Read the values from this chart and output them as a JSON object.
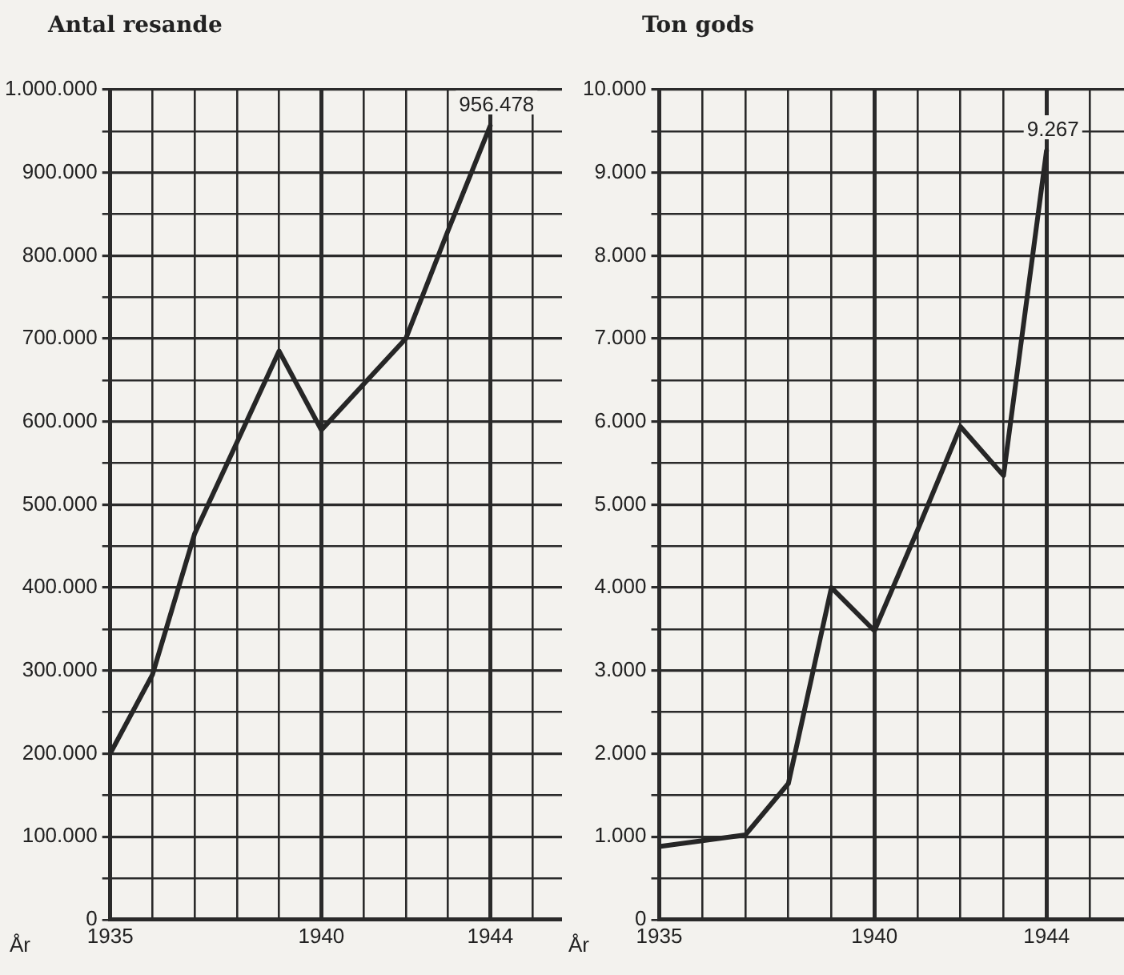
{
  "chart_data": [
    {
      "type": "line",
      "title": "Antal resande",
      "xlabel": "År",
      "marker": "none",
      "grid": true,
      "legend": false,
      "x": [
        1935,
        1936,
        1937,
        1938,
        1939,
        1940,
        1941,
        1942,
        1943,
        1944
      ],
      "series": [
        {
          "color": "#262626",
          "values": [
            200000,
            295000,
            465000,
            575000,
            685000,
            590000,
            645000,
            700000,
            830000,
            956478
          ],
          "value_labels": [
            null,
            null,
            null,
            null,
            null,
            null,
            null,
            null,
            null,
            "956.478"
          ]
        }
      ],
      "xlim": [
        1935,
        1945.7
      ],
      "xticks": [
        1935,
        {
          "value": 1936,
          "label": null
        },
        {
          "value": 1937,
          "label": null
        },
        {
          "value": 1938,
          "label": null
        },
        {
          "value": 1939,
          "label": null
        },
        1940,
        {
          "value": 1941,
          "label": null
        },
        {
          "value": 1942,
          "label": null
        },
        {
          "value": 1943,
          "label": null
        },
        1944,
        {
          "value": 1945,
          "label": null
        }
      ],
      "ylim": [
        0,
        1000000
      ],
      "yticks": [
        0,
        {
          "value": 50000,
          "label": null
        },
        {
          "value": 100000,
          "label": "100.000"
        },
        {
          "value": 150000,
          "label": null
        },
        {
          "value": 200000,
          "label": "200.000"
        },
        {
          "value": 250000,
          "label": null
        },
        {
          "value": 300000,
          "label": "300.000"
        },
        {
          "value": 350000,
          "label": null
        },
        {
          "value": 400000,
          "label": "400.000"
        },
        {
          "value": 450000,
          "label": null
        },
        {
          "value": 500000,
          "label": "500.000"
        },
        {
          "value": 550000,
          "label": null
        },
        {
          "value": 600000,
          "label": "600.000"
        },
        {
          "value": 650000,
          "label": null
        },
        {
          "value": 700000,
          "label": "700.000"
        },
        {
          "value": 750000,
          "label": null
        },
        {
          "value": 800000,
          "label": "800.000"
        },
        {
          "value": 850000,
          "label": null
        },
        {
          "value": 900000,
          "label": "900.000"
        },
        {
          "value": 950000,
          "label": null
        },
        {
          "value": 1000000,
          "label": "1.000.000"
        }
      ]
    },
    {
      "type": "line",
      "title": "Ton gods",
      "xlabel": "År",
      "marker": "none",
      "grid": true,
      "legend": false,
      "x": [
        1935,
        1936,
        1937,
        1938,
        1939,
        1940,
        1941,
        1942,
        1943,
        1944
      ],
      "series": [
        {
          "color": "#262626",
          "values": [
            880,
            950,
            1020,
            1640,
            4000,
            3480,
            4690,
            5940,
            5350,
            9267
          ],
          "value_labels": [
            null,
            null,
            null,
            null,
            null,
            null,
            null,
            null,
            null,
            "9.267"
          ]
        }
      ],
      "xlim": [
        1935,
        1945.8
      ],
      "xticks": [
        1935,
        {
          "value": 1936,
          "label": null
        },
        {
          "value": 1937,
          "label": null
        },
        {
          "value": 1938,
          "label": null
        },
        {
          "value": 1939,
          "label": null
        },
        1940,
        {
          "value": 1941,
          "label": null
        },
        {
          "value": 1942,
          "label": null
        },
        {
          "value": 1943,
          "label": null
        },
        1944,
        {
          "value": 1945,
          "label": null
        }
      ],
      "ylim": [
        0,
        10000
      ],
      "yticks": [
        0,
        {
          "value": 500,
          "label": null
        },
        {
          "value": 1000,
          "label": "1.000"
        },
        {
          "value": 1500,
          "label": null
        },
        {
          "value": 2000,
          "label": "2.000"
        },
        {
          "value": 2500,
          "label": null
        },
        {
          "value": 3000,
          "label": "3.000"
        },
        {
          "value": 3500,
          "label": null
        },
        {
          "value": 4000,
          "label": "4.000"
        },
        {
          "value": 4500,
          "label": null
        },
        {
          "value": 5000,
          "label": "5.000"
        },
        {
          "value": 5500,
          "label": null
        },
        {
          "value": 6000,
          "label": "6.000"
        },
        {
          "value": 6500,
          "label": null
        },
        {
          "value": 7000,
          "label": "7.000"
        },
        {
          "value": 7500,
          "label": null
        },
        {
          "value": 8000,
          "label": "8.000"
        },
        {
          "value": 8500,
          "label": null
        },
        {
          "value": 9000,
          "label": "9.000"
        },
        {
          "value": 9500,
          "label": null
        },
        {
          "value": 10000,
          "label": "10.000"
        }
      ]
    }
  ]
}
